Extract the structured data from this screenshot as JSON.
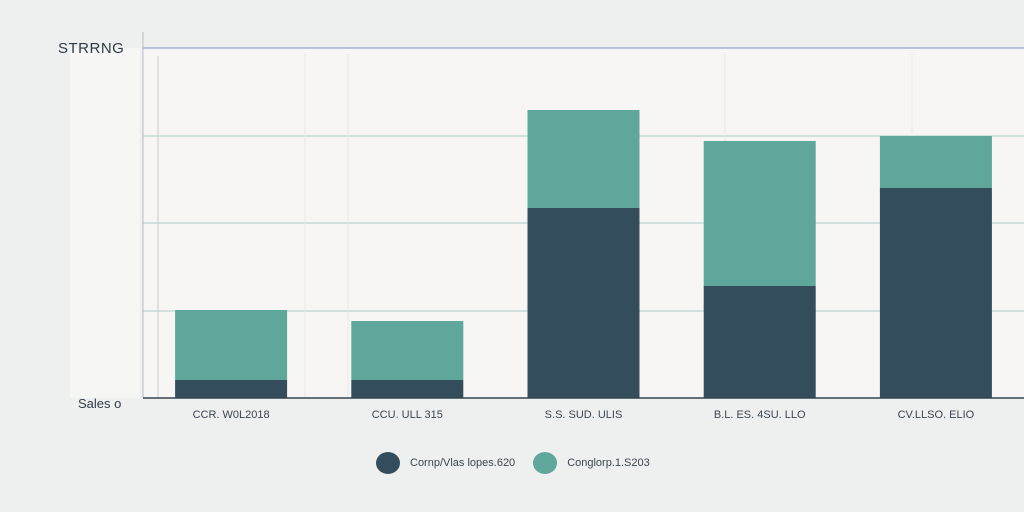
{
  "chart_data": {
    "type": "bar",
    "stacked": true,
    "title": "STRRNG",
    "xlabel": "Sales o",
    "ylabel": "",
    "categories": [
      "CCR. W0L2018",
      "CCU. ULL 315",
      "S.S. SUD. ULIS",
      "B.L. ES. 4SU. LLO",
      "CV.LLSO. ELIO"
    ],
    "series": [
      {
        "name": "Cornp/Vlas lopes.620",
        "color": "#344d5c",
        "values": [
          18,
          18,
          190,
          112,
          210
        ]
      },
      {
        "name": "Conglorp.1.S203",
        "color": "#5ea79a",
        "values": [
          70,
          59,
          98,
          145,
          52
        ]
      }
    ],
    "ylim": [
      0,
      350
    ],
    "grid": true,
    "legend_position": "bottom"
  }
}
